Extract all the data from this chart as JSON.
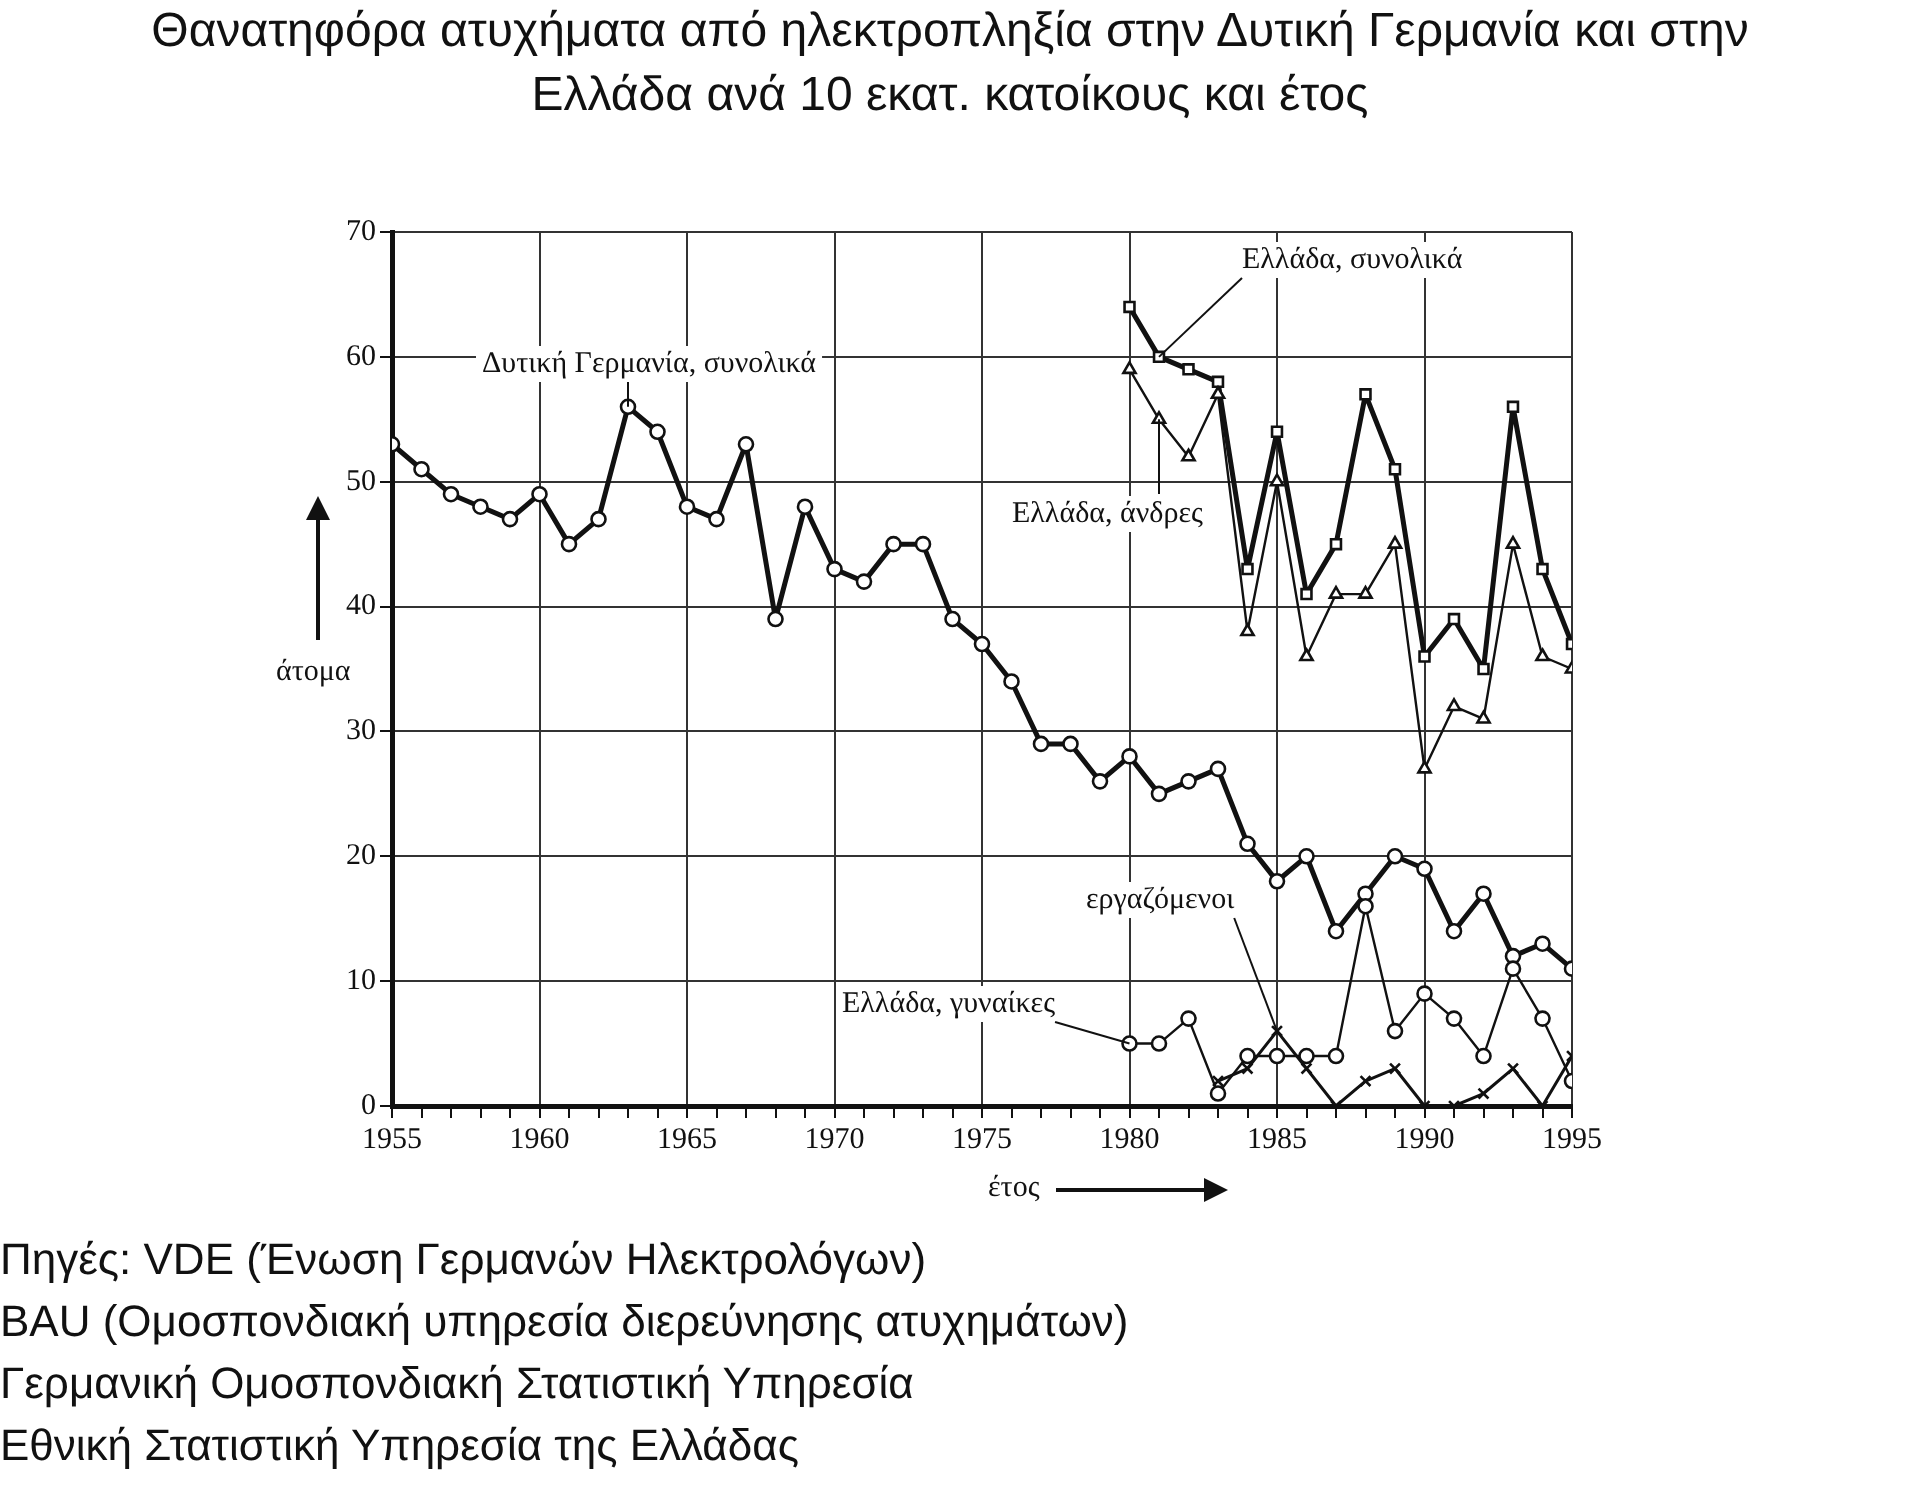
{
  "chart_data": {
    "type": "line",
    "title": "Θανατηφόρα ατυχήματα από ηλεκτροπληξία στην Δυτική Γερμανία και στην Ελλάδα ανά 10 εκατ. κατοίκους και έτος",
    "xlabel": "έτος",
    "ylabel": "άτομα",
    "x": [
      1955,
      1956,
      1957,
      1958,
      1959,
      1960,
      1961,
      1962,
      1963,
      1964,
      1965,
      1966,
      1967,
      1968,
      1969,
      1970,
      1971,
      1972,
      1973,
      1974,
      1975,
      1976,
      1977,
      1978,
      1979,
      1980,
      1981,
      1982,
      1983,
      1984,
      1985,
      1986,
      1987,
      1988,
      1989,
      1990,
      1991,
      1992,
      1993,
      1994,
      1995
    ],
    "series": [
      {
        "name": "Δυτική Γερμανία, συνολικά",
        "color": "#111111",
        "marker": "circle",
        "values": [
          53,
          51,
          49,
          48,
          47,
          49,
          45,
          47,
          56,
          54,
          48,
          47,
          53,
          39,
          48,
          43,
          42,
          45,
          45,
          39,
          37,
          34,
          29,
          29,
          26,
          28,
          25,
          26,
          27,
          21,
          18,
          20,
          14,
          17,
          20,
          19,
          14,
          17,
          12,
          13,
          11
        ]
      },
      {
        "name": "Ελλάδα, συνολικά",
        "color": "#111111",
        "marker": "square",
        "x": [
          1980,
          1981,
          1982,
          1983,
          1984,
          1985,
          1986,
          1987,
          1988,
          1989,
          1990,
          1991,
          1992,
          1993,
          1994,
          1995
        ],
        "values": [
          64,
          60,
          59,
          58,
          43,
          54,
          41,
          45,
          57,
          51,
          36,
          39,
          35,
          56,
          43,
          37
        ]
      },
      {
        "name": "Ελλάδα, άνδρες",
        "color": "#111111",
        "marker": "triangle",
        "x": [
          1980,
          1981,
          1982,
          1983,
          1984,
          1985,
          1986,
          1987,
          1988,
          1989,
          1990,
          1991,
          1992,
          1993,
          1994,
          1995
        ],
        "values": [
          59,
          55,
          52,
          57,
          38,
          50,
          36,
          41,
          41,
          45,
          27,
          32,
          31,
          45,
          36,
          35
        ]
      },
      {
        "name": "Ελλάδα, γυναίκες",
        "color": "#111111",
        "marker": "circle",
        "x": [
          1980,
          1981,
          1982,
          1983,
          1984,
          1985,
          1986,
          1987,
          1988,
          1989,
          1990,
          1991,
          1992,
          1993,
          1994,
          1995
        ],
        "values": [
          5,
          5,
          7,
          1,
          4,
          4,
          4,
          4,
          16,
          6,
          9,
          7,
          4,
          11,
          7,
          2
        ]
      },
      {
        "name": "εργαζόμενοι",
        "color": "#111111",
        "marker": "cross",
        "x": [
          1983,
          1984,
          1985,
          1986,
          1987,
          1988,
          1989,
          1990,
          1991,
          1992,
          1993,
          1994,
          1995
        ],
        "values": [
          2,
          3,
          6,
          3,
          0,
          2,
          3,
          0,
          0,
          1,
          3,
          0,
          4
        ]
      }
    ],
    "xlim": [
      1955,
      1995
    ],
    "xticks": [
      1955,
      {
        "value": 1956,
        "label": null
      },
      {
        "value": 1957,
        "label": null
      },
      {
        "value": 1958,
        "label": null
      },
      {
        "value": 1959,
        "label": null
      },
      1960,
      {
        "value": 1961,
        "label": null
      },
      {
        "value": 1962,
        "label": null
      },
      {
        "value": 1963,
        "label": null
      },
      {
        "value": 1964,
        "label": null
      },
      1965,
      {
        "value": 1966,
        "label": null
      },
      {
        "value": 1967,
        "label": null
      },
      {
        "value": 1968,
        "label": null
      },
      {
        "value": 1969,
        "label": null
      },
      1970,
      {
        "value": 1971,
        "label": null
      },
      {
        "value": 1972,
        "label": null
      },
      {
        "value": 1973,
        "label": null
      },
      {
        "value": 1974,
        "label": null
      },
      1975,
      {
        "value": 1976,
        "label": null
      },
      {
        "value": 1977,
        "label": null
      },
      {
        "value": 1978,
        "label": null
      },
      {
        "value": 1979,
        "label": null
      },
      1980,
      {
        "value": 1981,
        "label": null
      },
      {
        "value": 1982,
        "label": null
      },
      {
        "value": 1983,
        "label": null
      },
      {
        "value": 1984,
        "label": null
      },
      1985,
      {
        "value": 1986,
        "label": null
      },
      {
        "value": 1987,
        "label": null
      },
      {
        "value": 1988,
        "label": null
      },
      {
        "value": 1989,
        "label": null
      },
      1990,
      {
        "value": 1991,
        "label": null
      },
      {
        "value": 1992,
        "label": null
      },
      {
        "value": 1993,
        "label": null
      },
      {
        "value": 1994,
        "label": null
      },
      1995
    ],
    "ylim": [
      0,
      70
    ],
    "yticks": [
      0,
      10,
      20,
      30,
      40,
      50,
      60,
      70
    ],
    "grid": true,
    "legend": false,
    "line_style": "solid",
    "annotations": [
      "Πηγές: VDE (Ένωση Γερμανών Ηλεκτρολόγων)",
      "BAU (Ομοσπονδιακή υπηρεσία διερεύνησης ατυχημάτων)",
      "Γερμανική Ομοσπονδιακή Στατιστική Υπηρεσία",
      "Εθνική Στατιστική Υπηρεσία της Ελλάδας"
    ]
  }
}
